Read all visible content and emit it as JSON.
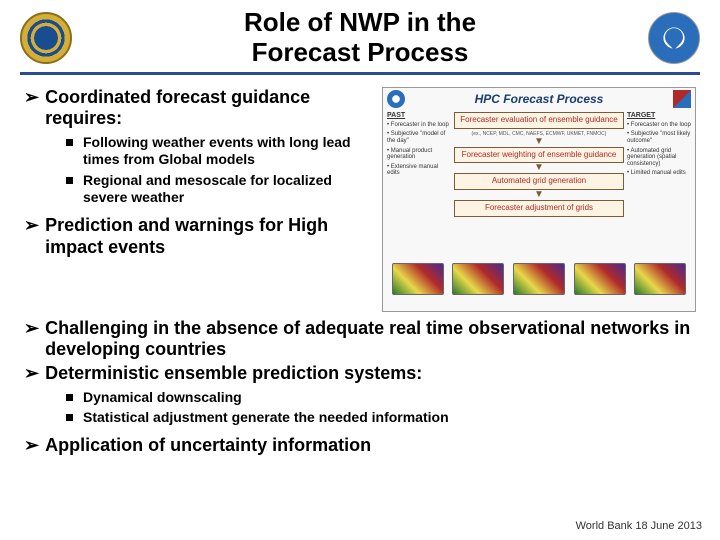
{
  "title_line1": "Role of NWP in the",
  "title_line2": "Forecast Process",
  "colors": {
    "hr": "#2a4d8f",
    "diag_box_border": "#7a5c3a",
    "diag_box_bg": "#fdf4e3",
    "diag_box_text": "#b02a2a",
    "diag_title": "#1a3d6f"
  },
  "bullets_top": [
    {
      "text": "Coordinated forecast guidance requires:",
      "sub": [
        "Following weather events with long lead times from Global models",
        "Regional and mesoscale for localized severe weather"
      ]
    },
    {
      "text": "Prediction and warnings for High impact events",
      "sub": []
    }
  ],
  "bullets_bottom": [
    {
      "text": "Challenging in the absence of adequate real time observational networks in developing countries",
      "sub": []
    },
    {
      "text": "Deterministic ensemble  prediction systems:",
      "sub": [
        "Dynamical downscaling",
        "Statistical adjustment generate the needed information"
      ]
    },
    {
      "text": "Application of uncertainty information",
      "sub": []
    }
  ],
  "diagram": {
    "title": "HPC Forecast Process",
    "left_header": "PAST",
    "left_items": [
      "Forecaster in the loop",
      "Subjective \"model of the day\"",
      "Manual product generation",
      "Extensive manual edits"
    ],
    "right_header": "TARGET",
    "right_items": [
      "Forecaster on the loop",
      "Subjective \"most likely outcome\"",
      "Automated grid generation (spatial consistency)",
      "Limited manual edits"
    ],
    "boxes": [
      "Forecaster evaluation of ensemble guidance",
      "Forecaster weighting of ensemble guidance",
      "Automated grid generation",
      "Forecaster adjustment of grids"
    ],
    "ensemble_note": "(ex., NCEP, MDL, CMC, NAEFS, ECMWF, UKMET, FNMOC)"
  },
  "footer": "World Bank 18 June 2013"
}
